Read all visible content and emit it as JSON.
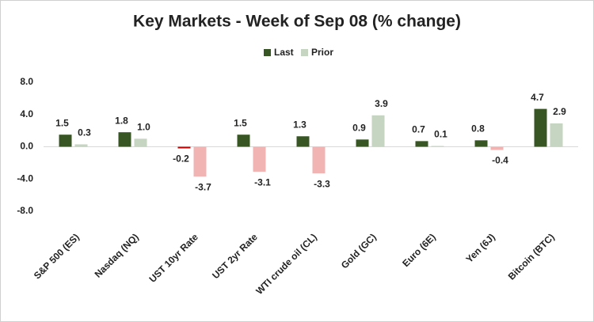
{
  "chart_data": {
    "type": "bar",
    "title": "Key Markets - Week of Sep 08 (% change)",
    "categories": [
      "S&P 500 (ES)",
      "Nasdaq (NQ)",
      "UST 10yr Rate",
      "UST 2yr Rate",
      "WTI crude oil (CL)",
      "Gold (GC)",
      "Euro (6E)",
      "Yen (6J)",
      "Bitcoin (BTC)"
    ],
    "series": [
      {
        "name": "Last",
        "color": "#375623",
        "negative_color": "#c00000",
        "values": [
          1.5,
          1.8,
          -0.2,
          1.5,
          1.3,
          0.9,
          0.7,
          0.8,
          4.7
        ],
        "value_labels": [
          "1.5",
          "1.8",
          "-0.2",
          "1.5",
          "1.3",
          "0.9",
          "0.7",
          "0.8",
          "4.7"
        ]
      },
      {
        "name": "Prior",
        "color": "#c6d4c2",
        "negative_color": "#f2b3b3",
        "values": [
          0.3,
          1.0,
          -3.7,
          -3.1,
          -3.3,
          3.9,
          0.1,
          -0.4,
          2.9
        ],
        "value_labels": [
          "0.3",
          "1.0",
          "-3.7",
          "-3.1",
          "-3.3",
          "3.9",
          "0.1",
          "-0.4",
          "2.9"
        ]
      }
    ],
    "ylim": [
      -8,
      8
    ],
    "yticks": [
      {
        "value": -8,
        "label": "-8.0"
      },
      {
        "value": -4,
        "label": "-4.0"
      },
      {
        "value": 0,
        "label": "0.0"
      },
      {
        "value": 4,
        "label": "4.0"
      },
      {
        "value": 8,
        "label": "8.0"
      }
    ],
    "grid": false,
    "legend": "top"
  }
}
